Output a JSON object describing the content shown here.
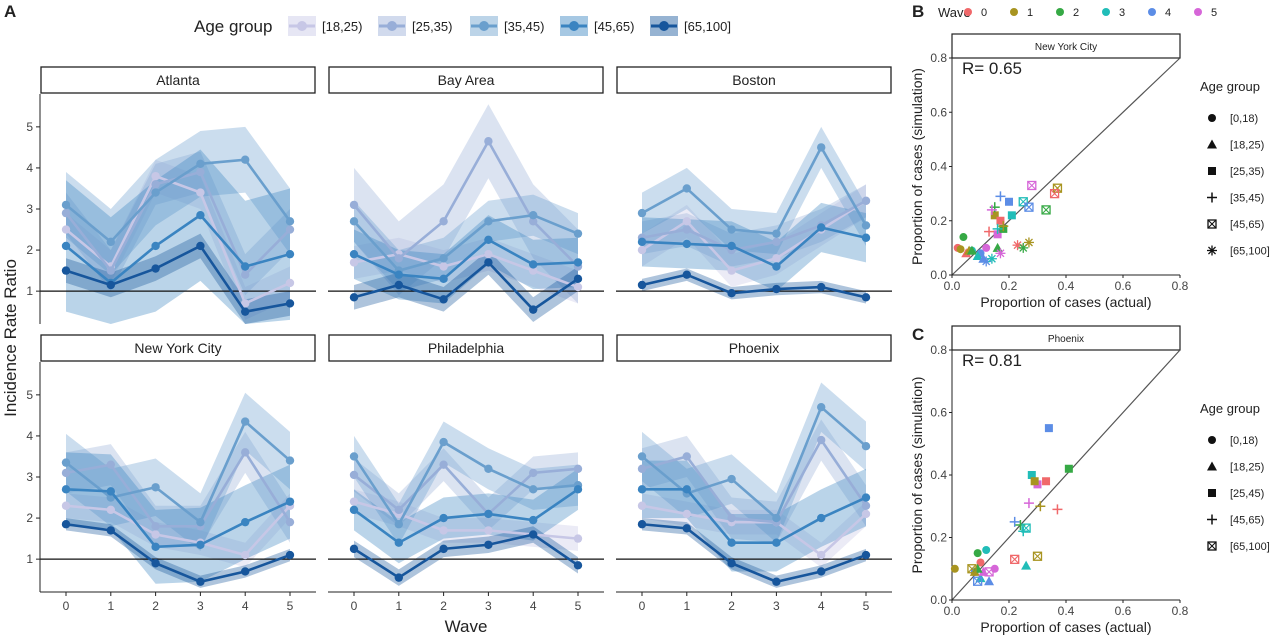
{
  "panel_labels": {
    "a": "A",
    "b": "B",
    "c": "C"
  },
  "colors": {
    "age_18_25": "#c7c7e6",
    "age_25_35": "#98aed8",
    "age_35_45": "#6a9fcd",
    "age_45_65": "#3a84c1",
    "age_65_100": "#17569c",
    "wave_0": "#f0686a",
    "wave_1": "#a89420",
    "wave_2": "#36a945",
    "wave_3": "#21bdb8",
    "wave_4": "#5c8de6",
    "wave_5": "#d666d8"
  },
  "chart_data": [
    {
      "type": "line",
      "title": "",
      "xlabel": "Wave",
      "ylabel": "Incidence Rate Ratio",
      "x": [
        0,
        1,
        2,
        3,
        4,
        5
      ],
      "ylim": [
        0.2,
        5.8
      ],
      "y_ticks": [
        1,
        2,
        3,
        4,
        5
      ],
      "x_ticks": [
        "0",
        "1",
        "2",
        "3",
        "4",
        "5"
      ],
      "reference_line": 1,
      "legend_title": "Age group",
      "series_names": [
        "[18,25)",
        "[25,35)",
        "[35,45)",
        "[45,65)",
        "[65,100]"
      ],
      "facets": [
        {
          "name": "Atlanta",
          "series": [
            {
              "values": [
                2.5,
                1.6,
                3.8,
                3.4,
                0.7,
                1.2
              ],
              "band": 0.4
            },
            {
              "values": [
                2.9,
                1.5,
                3.6,
                3.9,
                1.4,
                2.5
              ],
              "band": 0.5
            },
            {
              "values": [
                3.1,
                2.2,
                3.4,
                4.1,
                4.2,
                2.7
              ],
              "band": 0.8
            },
            {
              "values": [
                2.1,
                1.2,
                2.1,
                2.85,
                1.6,
                1.9
              ],
              "band": 1.6
            },
            {
              "values": [
                1.5,
                1.15,
                1.55,
                2.1,
                0.5,
                0.7
              ],
              "band": 0.3
            }
          ]
        },
        {
          "name": "Bay Area",
          "series": [
            {
              "values": [
                1.7,
                1.9,
                1.6,
                1.9,
                1.5,
                1.1
              ],
              "band": 0.4
            },
            {
              "values": [
                3.1,
                1.8,
                2.7,
                4.65,
                2.7,
                1.6
              ],
              "band": 0.9
            },
            {
              "values": [
                2.7,
                1.5,
                1.8,
                2.7,
                2.85,
                2.4
              ],
              "band": 0.5
            },
            {
              "values": [
                1.9,
                1.4,
                1.3,
                2.25,
                1.65,
                1.7
              ],
              "band": 0.6
            },
            {
              "values": [
                0.85,
                1.15,
                0.8,
                1.7,
                0.55,
                1.3
              ],
              "band": 0.3
            }
          ]
        },
        {
          "name": "Boston",
          "series": [
            {
              "values": [
                2.0,
                2.7,
                1.5,
                1.8,
                2.5,
                3.2
              ],
              "band": 0.4
            },
            {
              "values": [
                2.3,
                2.5,
                2.0,
                2.2,
                2.6,
                3.2
              ],
              "band": 0.4
            },
            {
              "values": [
                2.9,
                3.5,
                2.5,
                2.4,
                4.5,
                2.6
              ],
              "band": 0.5
            },
            {
              "values": [
                2.2,
                2.15,
                2.1,
                1.6,
                2.55,
                2.3
              ],
              "band": 0.6
            },
            {
              "values": [
                1.15,
                1.4,
                0.95,
                1.05,
                1.1,
                0.85
              ],
              "band": 0.15
            }
          ]
        },
        {
          "name": "New York City",
          "series": [
            {
              "values": [
                2.3,
                2.2,
                1.6,
                1.4,
                1.1,
                2.3
              ],
              "band": 0.3
            },
            {
              "values": [
                3.1,
                3.3,
                1.8,
                1.8,
                3.6,
                1.9
              ],
              "band": 0.5
            },
            {
              "values": [
                3.35,
                2.5,
                2.75,
                1.9,
                4.35,
                3.4
              ],
              "band": 0.7
            },
            {
              "values": [
                2.7,
                2.65,
                1.3,
                1.35,
                1.9,
                2.4
              ],
              "band": 0.9
            },
            {
              "values": [
                1.85,
                1.7,
                0.9,
                0.45,
                0.7,
                1.1
              ],
              "band": 0.15
            }
          ]
        },
        {
          "name": "Philadelphia",
          "series": [
            {
              "values": [
                2.4,
                2.1,
                1.7,
                1.7,
                1.6,
                1.5
              ],
              "band": 0.3
            },
            {
              "values": [
                3.05,
                2.2,
                3.3,
                2.1,
                3.1,
                3.2
              ],
              "band": 0.4
            },
            {
              "values": [
                3.5,
                1.85,
                3.85,
                3.2,
                2.7,
                2.8
              ],
              "band": 0.5
            },
            {
              "values": [
                2.2,
                1.4,
                2.0,
                2.1,
                1.95,
                2.7
              ],
              "band": 0.5
            },
            {
              "values": [
                1.25,
                0.55,
                1.25,
                1.35,
                1.6,
                0.85
              ],
              "band": 0.2
            }
          ]
        },
        {
          "name": "Phoenix",
          "series": [
            {
              "values": [
                2.3,
                2.1,
                1.9,
                1.9,
                1.1,
                2.1
              ],
              "band": 0.3
            },
            {
              "values": [
                3.2,
                3.5,
                2.0,
                1.9,
                3.9,
                2.3
              ],
              "band": 0.5
            },
            {
              "values": [
                3.5,
                2.6,
                2.95,
                2.0,
                4.7,
                3.75
              ],
              "band": 0.6
            },
            {
              "values": [
                2.7,
                2.7,
                1.4,
                1.4,
                2.0,
                2.5
              ],
              "band": 0.7
            },
            {
              "values": [
                1.85,
                1.75,
                0.9,
                0.45,
                0.7,
                1.1
              ],
              "band": 0.15
            }
          ]
        }
      ]
    },
    {
      "type": "scatter",
      "title": "New York City",
      "annotation": "R= 0.65",
      "xlabel": "Proportion of cases (actual)",
      "ylabel": "Proportion of cases (simulation)",
      "xlim": [
        0,
        0.8
      ],
      "ylim": [
        0,
        0.8
      ],
      "ticks": [
        "0.0",
        "0.2",
        "0.4",
        "0.6",
        "0.8"
      ],
      "wave_legend": {
        "title": "Wave",
        "labels": [
          "0",
          "1",
          "2",
          "3",
          "4",
          "5"
        ]
      },
      "age_legend": {
        "title": "Age group",
        "labels": [
          "[0,18)",
          "[18,25)",
          "[25,35)",
          "[35,45)",
          "[45,65)",
          "[65,100]"
        ]
      },
      "points": [
        {
          "x": 0.02,
          "y": 0.1,
          "wave": 0,
          "age": 0
        },
        {
          "x": 0.03,
          "y": 0.095,
          "wave": 1,
          "age": 0
        },
        {
          "x": 0.04,
          "y": 0.14,
          "wave": 2,
          "age": 0
        },
        {
          "x": 0.07,
          "y": 0.09,
          "wave": 3,
          "age": 0
        },
        {
          "x": 0.1,
          "y": 0.08,
          "wave": 4,
          "age": 0
        },
        {
          "x": 0.12,
          "y": 0.1,
          "wave": 5,
          "age": 0
        },
        {
          "x": 0.05,
          "y": 0.08,
          "wave": 0,
          "age": 1
        },
        {
          "x": 0.06,
          "y": 0.09,
          "wave": 1,
          "age": 1
        },
        {
          "x": 0.07,
          "y": 0.09,
          "wave": 2,
          "age": 1
        },
        {
          "x": 0.09,
          "y": 0.07,
          "wave": 3,
          "age": 1
        },
        {
          "x": 0.11,
          "y": 0.06,
          "wave": 4,
          "age": 1
        },
        {
          "x": 0.16,
          "y": 0.1,
          "wave": 2,
          "age": 1
        },
        {
          "x": 0.15,
          "y": 0.22,
          "wave": 1,
          "age": 2
        },
        {
          "x": 0.17,
          "y": 0.2,
          "wave": 0,
          "age": 2
        },
        {
          "x": 0.2,
          "y": 0.27,
          "wave": 4,
          "age": 2
        },
        {
          "x": 0.21,
          "y": 0.22,
          "wave": 3,
          "age": 2
        },
        {
          "x": 0.16,
          "y": 0.15,
          "wave": 5,
          "age": 2
        },
        {
          "x": 0.18,
          "y": 0.17,
          "wave": 2,
          "age": 2
        },
        {
          "x": 0.15,
          "y": 0.25,
          "wave": 2,
          "age": 3
        },
        {
          "x": 0.17,
          "y": 0.29,
          "wave": 4,
          "age": 3
        },
        {
          "x": 0.14,
          "y": 0.24,
          "wave": 5,
          "age": 3
        },
        {
          "x": 0.18,
          "y": 0.18,
          "wave": 1,
          "age": 3
        },
        {
          "x": 0.16,
          "y": 0.17,
          "wave": 3,
          "age": 3
        },
        {
          "x": 0.13,
          "y": 0.16,
          "wave": 0,
          "age": 3
        },
        {
          "x": 0.25,
          "y": 0.27,
          "wave": 3,
          "age": 4
        },
        {
          "x": 0.27,
          "y": 0.25,
          "wave": 4,
          "age": 4
        },
        {
          "x": 0.28,
          "y": 0.33,
          "wave": 5,
          "age": 4
        },
        {
          "x": 0.33,
          "y": 0.24,
          "wave": 2,
          "age": 4
        },
        {
          "x": 0.37,
          "y": 0.32,
          "wave": 1,
          "age": 4
        },
        {
          "x": 0.36,
          "y": 0.3,
          "wave": 0,
          "age": 4
        },
        {
          "x": 0.12,
          "y": 0.05,
          "wave": 4,
          "age": 5
        },
        {
          "x": 0.14,
          "y": 0.06,
          "wave": 3,
          "age": 5
        },
        {
          "x": 0.17,
          "y": 0.08,
          "wave": 5,
          "age": 5
        },
        {
          "x": 0.23,
          "y": 0.11,
          "wave": 0,
          "age": 5
        },
        {
          "x": 0.25,
          "y": 0.1,
          "wave": 2,
          "age": 5
        },
        {
          "x": 0.27,
          "y": 0.12,
          "wave": 1,
          "age": 5
        }
      ]
    },
    {
      "type": "scatter",
      "title": "Phoenix",
      "annotation": "R= 0.81",
      "xlabel": "Proportion of cases (actual)",
      "ylabel": "Proportion of cases (simulation)",
      "xlim": [
        0,
        0.8
      ],
      "ylim": [
        0,
        0.8
      ],
      "ticks": [
        "0.0",
        "0.2",
        "0.4",
        "0.6",
        "0.8"
      ],
      "age_legend": {
        "title": "Age group",
        "labels": [
          "[0,18)",
          "[18,25)",
          "[25,45)",
          "[45,65)",
          "[65,100]"
        ]
      },
      "points": [
        {
          "x": 0.01,
          "y": 0.1,
          "wave": 1,
          "age": 0
        },
        {
          "x": 0.09,
          "y": 0.15,
          "wave": 2,
          "age": 0
        },
        {
          "x": 0.12,
          "y": 0.16,
          "wave": 3,
          "age": 0
        },
        {
          "x": 0.08,
          "y": 0.09,
          "wave": 4,
          "age": 0
        },
        {
          "x": 0.15,
          "y": 0.1,
          "wave": 5,
          "age": 0
        },
        {
          "x": 0.1,
          "y": 0.12,
          "wave": 0,
          "age": 0
        },
        {
          "x": 0.08,
          "y": 0.09,
          "wave": 1,
          "age": 1
        },
        {
          "x": 0.1,
          "y": 0.07,
          "wave": 3,
          "age": 1
        },
        {
          "x": 0.13,
          "y": 0.06,
          "wave": 4,
          "age": 1
        },
        {
          "x": 0.26,
          "y": 0.11,
          "wave": 3,
          "age": 1
        },
        {
          "x": 0.11,
          "y": 0.09,
          "wave": 5,
          "age": 1
        },
        {
          "x": 0.09,
          "y": 0.1,
          "wave": 2,
          "age": 1
        },
        {
          "x": 0.28,
          "y": 0.4,
          "wave": 3,
          "age": 2
        },
        {
          "x": 0.3,
          "y": 0.37,
          "wave": 5,
          "age": 2
        },
        {
          "x": 0.33,
          "y": 0.38,
          "wave": 0,
          "age": 2
        },
        {
          "x": 0.34,
          "y": 0.55,
          "wave": 4,
          "age": 2
        },
        {
          "x": 0.41,
          "y": 0.42,
          "wave": 2,
          "age": 2
        },
        {
          "x": 0.29,
          "y": 0.38,
          "wave": 1,
          "age": 2
        },
        {
          "x": 0.22,
          "y": 0.25,
          "wave": 4,
          "age": 3
        },
        {
          "x": 0.25,
          "y": 0.22,
          "wave": 3,
          "age": 3
        },
        {
          "x": 0.27,
          "y": 0.31,
          "wave": 5,
          "age": 3
        },
        {
          "x": 0.31,
          "y": 0.3,
          "wave": 1,
          "age": 3
        },
        {
          "x": 0.37,
          "y": 0.29,
          "wave": 0,
          "age": 3
        },
        {
          "x": 0.24,
          "y": 0.24,
          "wave": 2,
          "age": 3
        },
        {
          "x": 0.09,
          "y": 0.06,
          "wave": 4,
          "age": 4
        },
        {
          "x": 0.13,
          "y": 0.09,
          "wave": 5,
          "age": 4
        },
        {
          "x": 0.07,
          "y": 0.1,
          "wave": 1,
          "age": 4
        },
        {
          "x": 0.22,
          "y": 0.13,
          "wave": 0,
          "age": 4
        },
        {
          "x": 0.3,
          "y": 0.14,
          "wave": 1,
          "age": 4
        },
        {
          "x": 0.26,
          "y": 0.23,
          "wave": 3,
          "age": 4
        }
      ]
    }
  ]
}
